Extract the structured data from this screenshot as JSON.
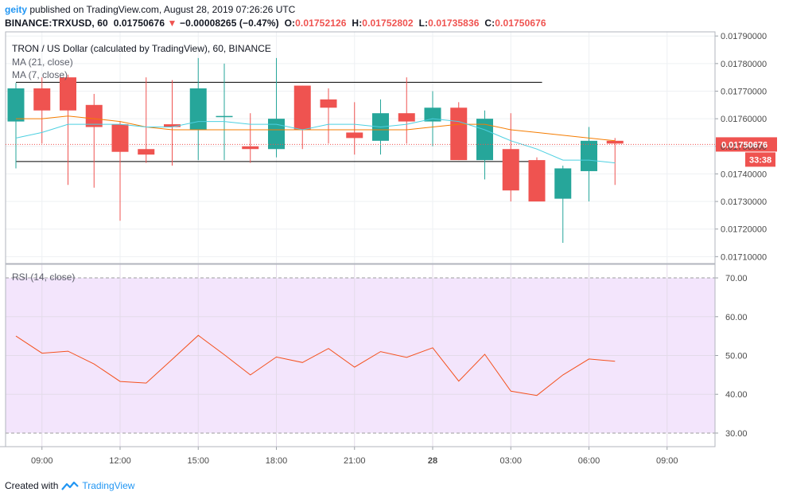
{
  "header": {
    "user": "geity",
    "published_text": " published on TradingView.com, August 28, 2019 07:26:26 UTC",
    "symbol": "BINANCE:TRXUSD, 60",
    "last": "0.01750676",
    "arrow": "▼",
    "change": "−0.00008265 (−0.47%)",
    "o_label": "O:",
    "o_value": "0.01752126",
    "h_label": "H:",
    "h_value": "0.01752802",
    "l_label": "L:",
    "l_value": "0.01735836",
    "c_label": "C:",
    "c_value": "0.01750676"
  },
  "footer": {
    "created_with": "Created with",
    "brand": "TradingView"
  },
  "colors": {
    "up": "#26a69a",
    "down": "#ef5350",
    "ma21": "#f57c00",
    "ma7": "#4dd0e1",
    "rsi_line": "#f4511e",
    "rsi_band": "#f3e5fc",
    "price_tag": "#ef5350"
  },
  "chart_data": [
    {
      "type": "candlestick",
      "title": "TRON / US Dollar (calculated by TradingView), 60, BINANCE",
      "legend": [
        "MA (21, close)",
        "MA (7, close)"
      ],
      "ylim": [
        0.017075,
        0.017915
      ],
      "yticks": [
        "0.01710000",
        "0.01720000",
        "0.01730000",
        "0.01740000",
        "0.01750000",
        "0.01760000",
        "0.01770000",
        "0.01780000",
        "0.01790000"
      ],
      "xticks": [
        "09:00",
        "12:00",
        "15:00",
        "18:00",
        "21:00",
        "28",
        "03:00",
        "06:00",
        "09:00"
      ],
      "price_tag": "0.01750676",
      "countdown": "33:38",
      "horizontal_lines": [
        0.017732,
        0.017445
      ],
      "candles": [
        {
          "o": 0.01759,
          "h": 0.01773,
          "l": 0.01742,
          "c": 0.01771
        },
        {
          "o": 0.01771,
          "h": 0.01775,
          "l": 0.01751,
          "c": 0.01763
        },
        {
          "o": 0.01775,
          "h": 0.01776,
          "l": 0.01736,
          "c": 0.01763
        },
        {
          "o": 0.01765,
          "h": 0.01769,
          "l": 0.01735,
          "c": 0.01757
        },
        {
          "o": 0.01758,
          "h": 0.01759,
          "l": 0.01723,
          "c": 0.01748
        },
        {
          "o": 0.01749,
          "h": 0.01775,
          "l": 0.01744,
          "c": 0.01747
        },
        {
          "o": 0.01758,
          "h": 0.01774,
          "l": 0.01743,
          "c": 0.01757
        },
        {
          "o": 0.01756,
          "h": 0.01782,
          "l": 0.01745,
          "c": 0.01771
        },
        {
          "o": 0.01761,
          "h": 0.0178,
          "l": 0.01745,
          "c": 0.01761
        },
        {
          "o": 0.0175,
          "h": 0.01762,
          "l": 0.01744,
          "c": 0.01749
        },
        {
          "o": 0.01749,
          "h": 0.01782,
          "l": 0.01746,
          "c": 0.0176
        },
        {
          "o": 0.01772,
          "h": 0.01772,
          "l": 0.01749,
          "c": 0.01756
        },
        {
          "o": 0.01767,
          "h": 0.01771,
          "l": 0.01751,
          "c": 0.01764
        },
        {
          "o": 0.01755,
          "h": 0.01766,
          "l": 0.01747,
          "c": 0.01753
        },
        {
          "o": 0.01752,
          "h": 0.01767,
          "l": 0.01747,
          "c": 0.01762
        },
        {
          "o": 0.01762,
          "h": 0.01775,
          "l": 0.01751,
          "c": 0.01759
        },
        {
          "o": 0.01759,
          "h": 0.0177,
          "l": 0.0175,
          "c": 0.01764
        },
        {
          "o": 0.01764,
          "h": 0.01766,
          "l": 0.01745,
          "c": 0.01745
        },
        {
          "o": 0.01745,
          "h": 0.01763,
          "l": 0.01738,
          "c": 0.0176
        },
        {
          "o": 0.01749,
          "h": 0.01762,
          "l": 0.0173,
          "c": 0.01734
        },
        {
          "o": 0.01745,
          "h": 0.01746,
          "l": 0.0173,
          "c": 0.0173
        },
        {
          "o": 0.01731,
          "h": 0.01743,
          "l": 0.01715,
          "c": 0.01742
        },
        {
          "o": 0.01741,
          "h": 0.01757,
          "l": 0.0173,
          "c": 0.01752
        },
        {
          "o": 0.01752,
          "h": 0.01753,
          "l": 0.01736,
          "c": 0.01751
        }
      ],
      "ma21": [
        0.0176,
        0.0176,
        0.01761,
        0.0176,
        0.01759,
        0.01757,
        0.01756,
        0.01756,
        0.01756,
        0.01756,
        0.01756,
        0.01756,
        0.01756,
        0.01756,
        0.01756,
        0.01756,
        0.01757,
        0.01758,
        0.01758,
        0.01756,
        0.01755,
        0.01754,
        0.01753,
        0.01752
      ],
      "ma7": [
        0.01753,
        0.01755,
        0.01758,
        0.01758,
        0.01758,
        0.01757,
        0.01757,
        0.01759,
        0.01759,
        0.01758,
        0.01758,
        0.01756,
        0.01758,
        0.01758,
        0.01757,
        0.01758,
        0.0176,
        0.01759,
        0.01756,
        0.01752,
        0.01749,
        0.01745,
        0.01745,
        0.01744
      ]
    },
    {
      "type": "line",
      "title": "RSI (14, close)",
      "ylim": [
        26.5,
        73.5
      ],
      "yticks": [
        "30.00",
        "40.00",
        "50.00",
        "60.00",
        "70.00"
      ],
      "band": [
        30,
        70
      ],
      "values": [
        55.0,
        50.6,
        51.1,
        47.8,
        43.3,
        42.9,
        49.0,
        55.2,
        50.2,
        45.0,
        49.6,
        48.2,
        51.8,
        47.0,
        51.0,
        49.5,
        52.0,
        43.4,
        50.3,
        40.8,
        39.7,
        45.0,
        49.1,
        48.5
      ]
    }
  ]
}
